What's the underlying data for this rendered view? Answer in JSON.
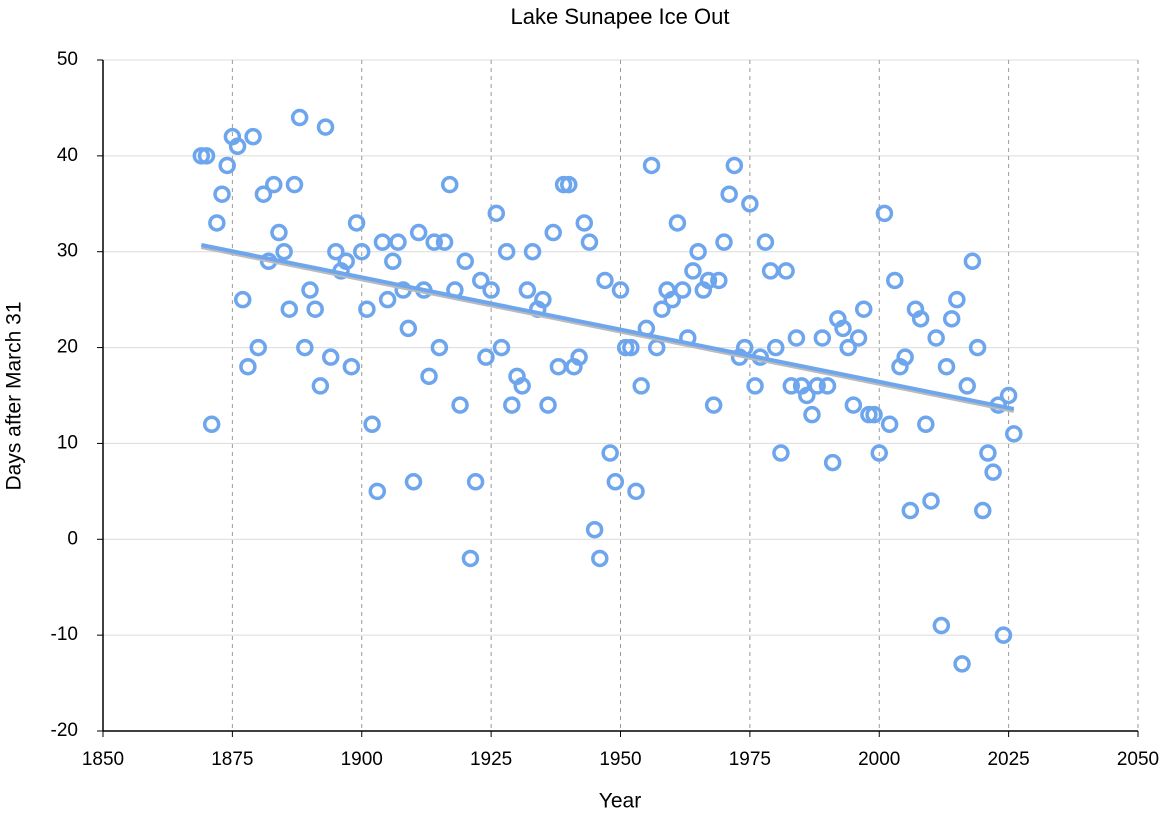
{
  "chart_data": {
    "type": "scatter",
    "title": "Lake Sunapee Ice Out",
    "xlabel": "Year",
    "ylabel": "Days after March 31",
    "x": [
      1869,
      1870,
      1871,
      1872,
      1873,
      1874,
      1875,
      1876,
      1877,
      1878,
      1879,
      1880,
      1881,
      1882,
      1883,
      1884,
      1885,
      1886,
      1887,
      1888,
      1889,
      1890,
      1891,
      1892,
      1893,
      1894,
      1895,
      1896,
      1897,
      1898,
      1899,
      1900,
      1901,
      1902,
      1903,
      1904,
      1905,
      1906,
      1907,
      1908,
      1909,
      1910,
      1911,
      1912,
      1913,
      1914,
      1915,
      1916,
      1917,
      1918,
      1919,
      1920,
      1921,
      1922,
      1923,
      1924,
      1925,
      1926,
      1927,
      1928,
      1929,
      1930,
      1931,
      1932,
      1933,
      1934,
      1935,
      1936,
      1937,
      1938,
      1939,
      1940,
      1941,
      1942,
      1943,
      1944,
      1945,
      1946,
      1947,
      1948,
      1949,
      1950,
      1951,
      1952,
      1953,
      1954,
      1955,
      1956,
      1957,
      1958,
      1959,
      1960,
      1961,
      1962,
      1963,
      1964,
      1965,
      1966,
      1967,
      1968,
      1969,
      1970,
      1971,
      1972,
      1973,
      1974,
      1975,
      1976,
      1977,
      1978,
      1979,
      1980,
      1981,
      1982,
      1983,
      1984,
      1985,
      1986,
      1987,
      1988,
      1989,
      1990,
      1991,
      1992,
      1993,
      1994,
      1995,
      1996,
      1997,
      1998,
      1999,
      2000,
      2001,
      2002,
      2003,
      2004,
      2005,
      2006,
      2007,
      2008,
      2009,
      2010,
      2011,
      2012,
      2013,
      2014,
      2015,
      2016,
      2017,
      2018,
      2019,
      2020,
      2021,
      2022,
      2023,
      2024,
      2025,
      2026
    ],
    "values": [
      40,
      40,
      12,
      33,
      36,
      39,
      42,
      41,
      25,
      18,
      42,
      20,
      36,
      29,
      37,
      32,
      30,
      24,
      37,
      44,
      20,
      26,
      24,
      16,
      43,
      19,
      30,
      28,
      29,
      18,
      33,
      30,
      24,
      12,
      5,
      31,
      25,
      29,
      31,
      26,
      22,
      6,
      32,
      26,
      17,
      31,
      20,
      31,
      37,
      26,
      14,
      29,
      -2,
      6,
      27,
      19,
      26,
      34,
      20,
      30,
      14,
      17,
      16,
      26,
      30,
      24,
      25,
      14,
      32,
      18,
      37,
      37,
      18,
      19,
      33,
      31,
      1,
      -2,
      27,
      9,
      6,
      26,
      20,
      20,
      5,
      16,
      22,
      39,
      20,
      24,
      26,
      25,
      33,
      26,
      21,
      28,
      30,
      26,
      27,
      14,
      27,
      31,
      36,
      39,
      19,
      20,
      35,
      16,
      19,
      31,
      28,
      20,
      9,
      28,
      16,
      21,
      16,
      15,
      13,
      16,
      21,
      16,
      8,
      23,
      22,
      20,
      14,
      21,
      24,
      13,
      13,
      9,
      34,
      12,
      27,
      18,
      19,
      3,
      24,
      23,
      12,
      4,
      21,
      -9,
      18,
      23,
      25,
      -13,
      16,
      29,
      20,
      3,
      9,
      7,
      14,
      -10,
      15,
      11
    ],
    "color": "#6ea6ee",
    "trendline": {
      "x": [
        1869,
        2026
      ],
      "values": [
        30.7,
        13.6
      ],
      "color": "#6ea6ee"
    },
    "xlim": [
      1850,
      2050
    ],
    "xticks": [
      1850,
      1875,
      1900,
      1925,
      1950,
      1975,
      2000,
      2025,
      2050
    ],
    "ylim": [
      -20,
      50
    ],
    "yticks": [
      -20,
      -10,
      0,
      10,
      20,
      30,
      40,
      50
    ],
    "grid": true
  }
}
